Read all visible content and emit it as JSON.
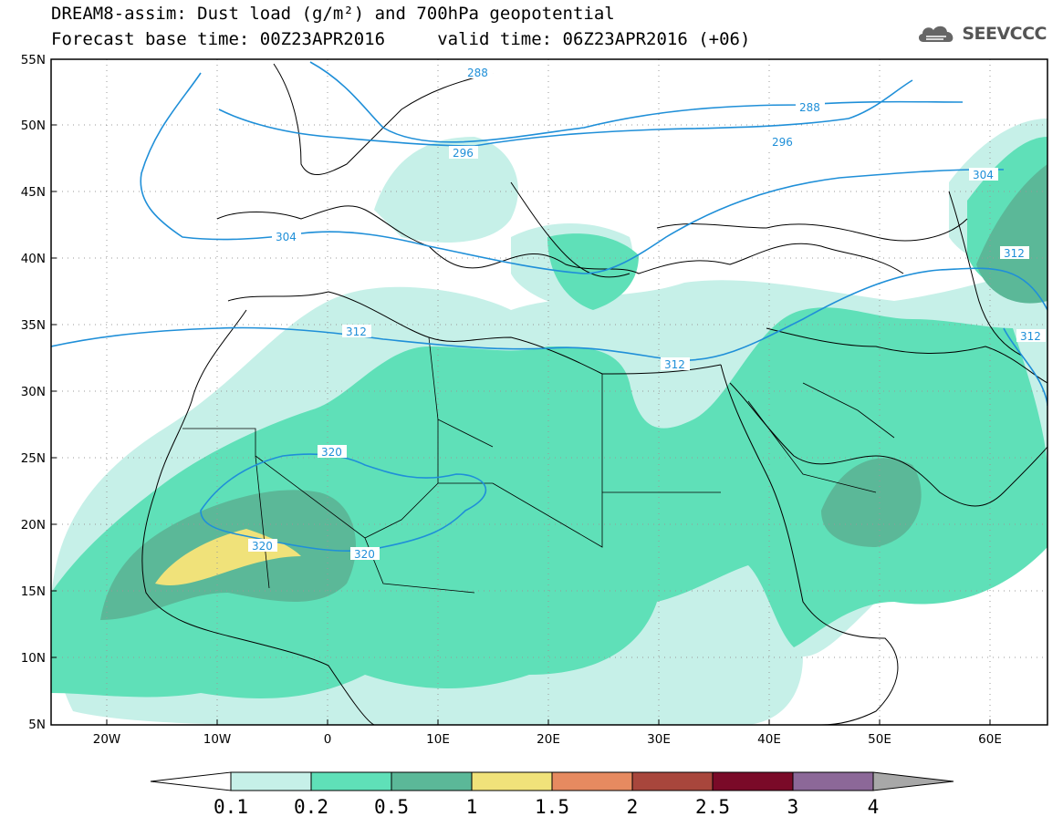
{
  "header": {
    "title_line_1": "DREAM8-assim: Dust load (g/m²) and 700hPa geopotential",
    "title_line_2": "Forecast base time: 00Z23APR2016     valid time: 06Z23APR2016 (+06)"
  },
  "brand": {
    "name": "SEEVCCC",
    "icon": "cloud-logo-icon"
  },
  "map": {
    "lat_labels": [
      "55N",
      "50N",
      "45N",
      "40N",
      "35N",
      "30N",
      "25N",
      "20N",
      "15N",
      "10N",
      "5N"
    ],
    "lon_labels": [
      "20W",
      "10W",
      "0",
      "10E",
      "20E",
      "30E",
      "40E",
      "50E",
      "60E"
    ],
    "contour_labels": [
      "288",
      "288",
      "296",
      "296",
      "304",
      "304",
      "312",
      "312",
      "312",
      "312",
      "320",
      "320",
      "320"
    ],
    "contour_color": "#1f8fd8",
    "coastline_color": "#000000"
  },
  "colorbar": {
    "labels": [
      "0.1",
      "0.2",
      "0.5",
      "1",
      "1.5",
      "2",
      "2.5",
      "3",
      "4"
    ],
    "colors": [
      "#c6f0e8",
      "#5fe0b8",
      "#5bb898",
      "#f0e27a",
      "#e68a60",
      "#a8463c",
      "#7a0a28",
      "#8c6898",
      "#a8a8a8"
    ]
  }
}
